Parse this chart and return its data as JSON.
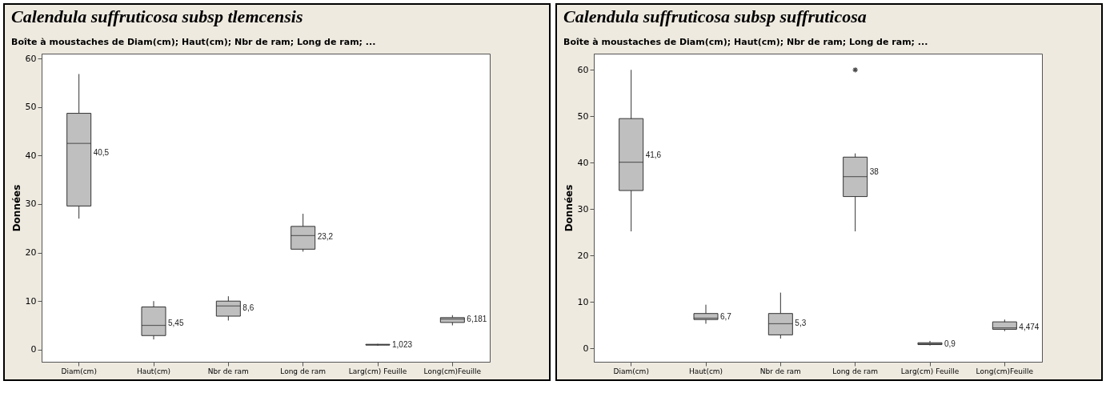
{
  "chart_data": [
    {
      "type": "box",
      "title": "Calendula suffruticosa subsp tlemcensis",
      "subtitle": "Boîte à moustaches de Diam(cm); Haut(cm); Nbr de ram; Long de ram; ...",
      "ylabel": "Données",
      "categories": [
        "Diam(cm)",
        "Haut(cm)",
        "Nbr de ram",
        "Long de ram",
        "Larg(cm) Feuille",
        "Long(cm)Feuille"
      ],
      "color": "#bfbfbf",
      "ylim": [
        -2.5,
        61
      ],
      "yticks": [
        0,
        10,
        20,
        30,
        40,
        50,
        60
      ],
      "grid": false,
      "boxes": [
        {
          "low": 27.0,
          "q1": 29.6,
          "median": 42.5,
          "q3": 48.7,
          "high": 56.8
        },
        {
          "low": 2.1,
          "q1": 2.9,
          "median": 5.0,
          "q3": 8.8,
          "high": 10.0
        },
        {
          "low": 6.0,
          "q1": 6.9,
          "median": 9.0,
          "q3": 10.0,
          "high": 11.0
        },
        {
          "low": 20.2,
          "q1": 20.7,
          "median": 23.5,
          "q3": 25.4,
          "high": 28.0
        },
        {
          "low": 0.8,
          "q1": 0.95,
          "median": 1.0,
          "q3": 1.1,
          "high": 1.2
        },
        {
          "low": 5.0,
          "q1": 5.6,
          "median": 6.3,
          "q3": 6.6,
          "high": 7.1
        }
      ],
      "annotations": [
        {
          "text": "40,5",
          "x": "Diam(cm)",
          "y": 40.5
        },
        {
          "text": "5,45",
          "x": "Haut(cm)",
          "y": 5.45
        },
        {
          "text": "8,6",
          "x": "Nbr de ram",
          "y": 8.6
        },
        {
          "text": "23,2",
          "x": "Long de ram",
          "y": 23.2
        },
        {
          "text": "1,023",
          "x": "Larg(cm) Feuille",
          "y": 1.023
        },
        {
          "text": "6,181",
          "x": "Long(cm)Feuille",
          "y": 6.181
        }
      ]
    },
    {
      "type": "box",
      "title": "Calendula suffruticosa subsp suffruticosa",
      "subtitle": "Boîte à moustaches de Diam(cm); Haut(cm); Nbr de ram; Long de ram; ...",
      "ylabel": "Données",
      "categories": [
        "Diam(cm)",
        "Haut(cm)",
        "Nbr de ram",
        "Long de ram",
        "Larg(cm) Feuille",
        "Long(cm)Feuille"
      ],
      "color": "#bfbfbf",
      "ylim": [
        -2.9,
        63.5
      ],
      "yticks": [
        0,
        10,
        20,
        30,
        40,
        50,
        60
      ],
      "grid": false,
      "marker": "star",
      "boxes": [
        {
          "low": 25.2,
          "q1": 34.0,
          "median": 40.1,
          "q3": 49.5,
          "high": 60.0
        },
        {
          "low": 5.3,
          "q1": 6.2,
          "median": 6.5,
          "q3": 7.5,
          "high": 9.4
        },
        {
          "low": 2.1,
          "q1": 2.9,
          "median": 5.3,
          "q3": 7.5,
          "high": 12.0
        },
        {
          "low": 25.2,
          "q1": 32.7,
          "median": 37.0,
          "q3": 41.2,
          "high": 42.0,
          "outliers": [
            60
          ]
        },
        {
          "low": 0.6,
          "q1": 0.8,
          "median": 1.0,
          "q3": 1.2,
          "high": 1.6
        },
        {
          "low": 3.7,
          "q1": 4.1,
          "median": 4.4,
          "q3": 5.7,
          "high": 6.2
        }
      ],
      "annotations": [
        {
          "text": "41,6",
          "x": "Diam(cm)",
          "y": 41.6
        },
        {
          "text": "6,7",
          "x": "Haut(cm)",
          "y": 6.7
        },
        {
          "text": "5,3",
          "x": "Nbr de ram",
          "y": 5.3
        },
        {
          "text": "38",
          "x": "Long de ram",
          "y": 38
        },
        {
          "text": "0,9",
          "x": "Larg(cm) Feuille",
          "y": 0.9
        },
        {
          "text": "4,474",
          "x": "Long(cm)Feuille",
          "y": 4.474
        }
      ]
    }
  ]
}
